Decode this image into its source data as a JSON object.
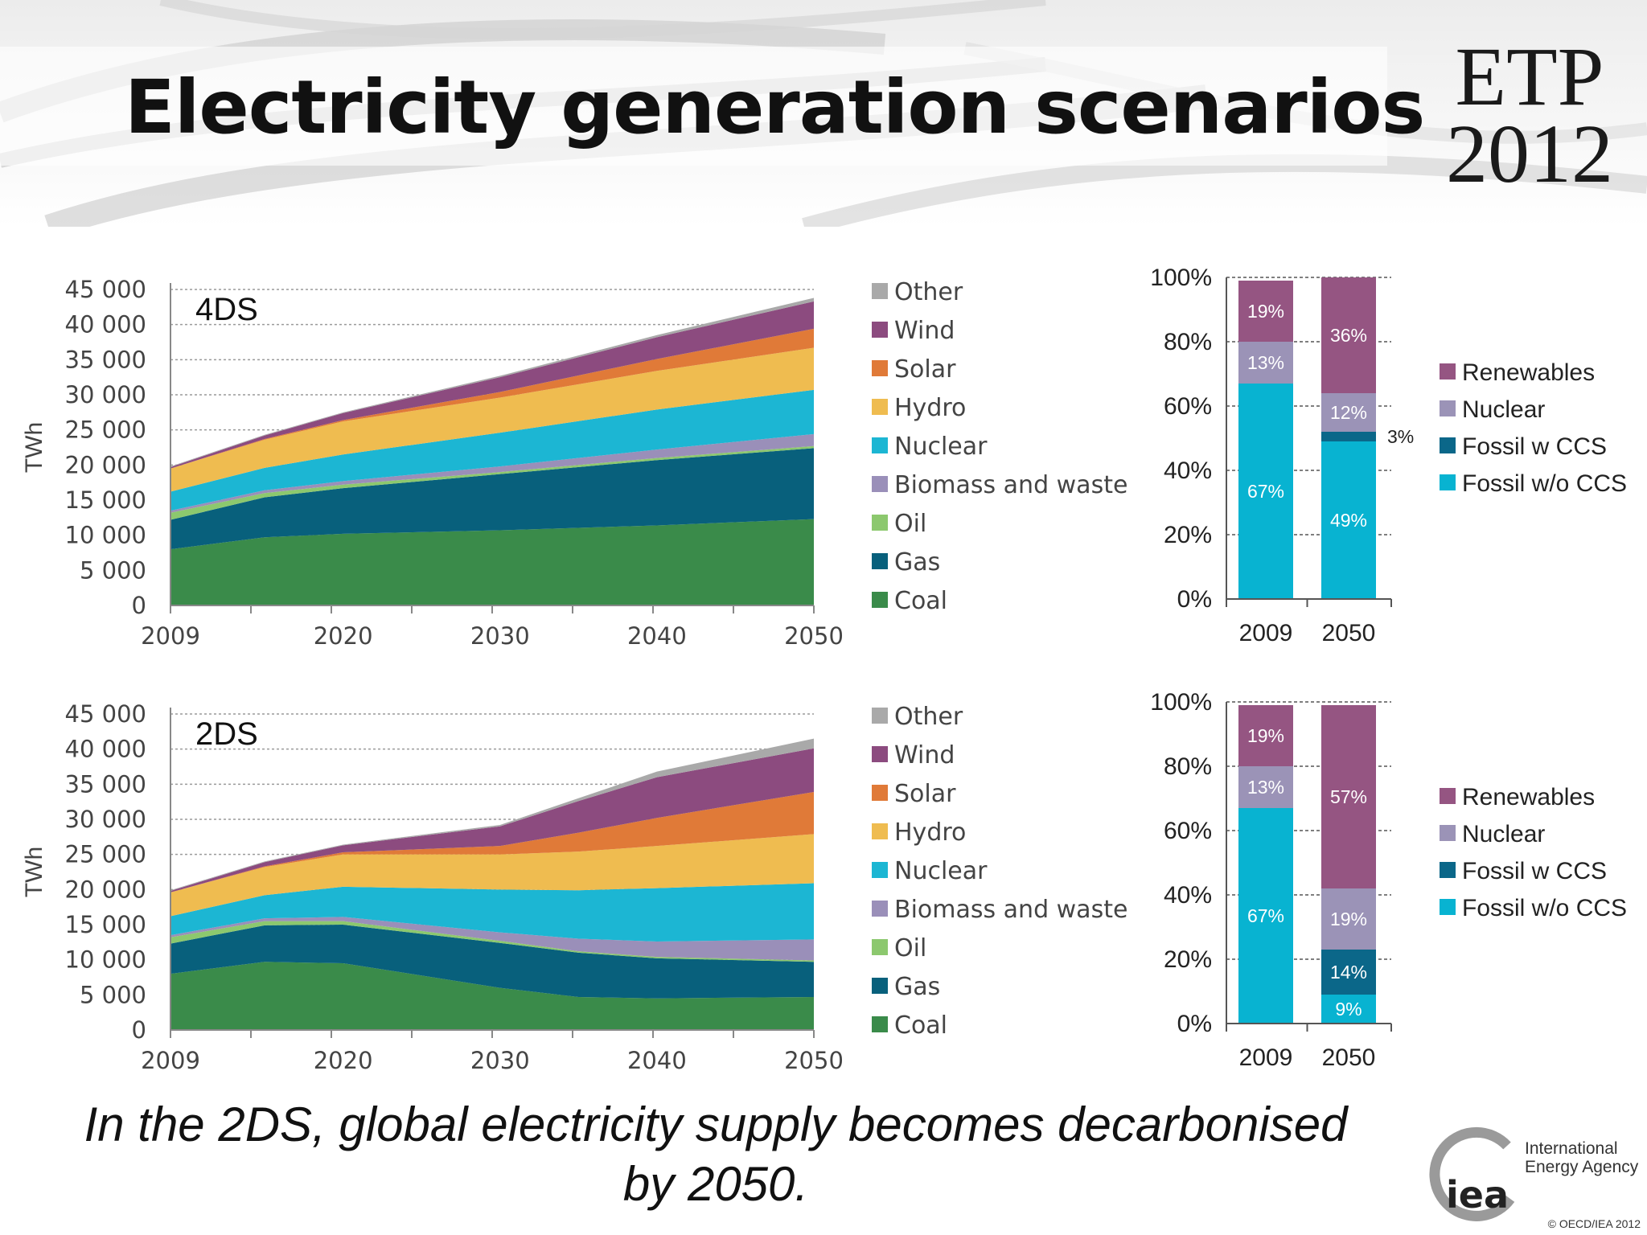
{
  "header": {
    "title": "Electricity generation scenarios",
    "badge_line1": "ETP",
    "badge_line2": "2012"
  },
  "caption": {
    "line1": "In the 2DS, global electricity supply becomes decarbonised",
    "line2": "by 2050."
  },
  "footer": {
    "org_line1": "International",
    "org_line2": "Energy Agency",
    "logo_text": "iea",
    "copyright": "© OECD/IEA 2012"
  },
  "colors": {
    "Coal": "#3a8b4a",
    "Gas": "#08607c",
    "Oil": "#8cc86e",
    "Biomass and waste": "#9a8fb9",
    "Nuclear": "#1cb6d3",
    "Hydro": "#efbc50",
    "Solar": "#e07a38",
    "Wind": "#8c4b7f",
    "Other": "#a9a9a9",
    "Renewables": "#955582",
    "Nuclear share": "#9b93b7",
    "Fossil w CCS": "#0b6789",
    "Fossil w/o CCS": "#08b3d1"
  },
  "chart_data": [
    {
      "id": "4ds-area",
      "type": "area",
      "stacked": true,
      "scenario_label": "4DS",
      "ylabel": "TWh",
      "xlabel": "",
      "x": [
        2009,
        2015,
        2020,
        2030,
        2040,
        2050
      ],
      "ylim": [
        0,
        45000
      ],
      "yticks": [
        0,
        5000,
        10000,
        15000,
        20000,
        25000,
        30000,
        35000,
        40000,
        45000
      ],
      "ytick_labels": [
        "0",
        "5 000",
        "10 000",
        "15 000",
        "20 000",
        "25 000",
        "30 000",
        "35 000",
        "40 000",
        "45 000"
      ],
      "xticks": [
        2009,
        2020,
        2030,
        2040,
        2050
      ],
      "grid": true,
      "legend": "right",
      "series": [
        {
          "name": "Coal",
          "values": [
            8000,
            9700,
            10200,
            10700,
            11400,
            12300
          ]
        },
        {
          "name": "Gas",
          "values": [
            4200,
            5700,
            6500,
            8000,
            9300,
            10100
          ]
        },
        {
          "name": "Oil",
          "values": [
            1000,
            600,
            500,
            300,
            300,
            300
          ]
        },
        {
          "name": "Biomass and waste",
          "values": [
            300,
            400,
            500,
            800,
            1200,
            1700
          ]
        },
        {
          "name": "Nuclear",
          "values": [
            2700,
            3200,
            3800,
            4800,
            5700,
            6300
          ]
        },
        {
          "name": "Hydro",
          "values": [
            3300,
            4000,
            4700,
            5000,
            5500,
            6000
          ]
        },
        {
          "name": "Solar",
          "values": [
            0,
            100,
            200,
            800,
            1700,
            2700
          ]
        },
        {
          "name": "Wind",
          "values": [
            200,
            500,
            1000,
            2100,
            3100,
            3900
          ]
        },
        {
          "name": "Other",
          "values": [
            100,
            100,
            100,
            200,
            300,
            500
          ]
        }
      ]
    },
    {
      "id": "4ds-share",
      "type": "bar",
      "stacked": true,
      "categories": [
        "2009",
        "2050"
      ],
      "ylim": [
        0,
        100
      ],
      "ytick_labels": [
        "0%",
        "20%",
        "40%",
        "60%",
        "80%",
        "100%"
      ],
      "legend": "right",
      "series": [
        {
          "name": "Fossil w/o CCS",
          "values": [
            67,
            49
          ],
          "labels": [
            "67%",
            "49%"
          ]
        },
        {
          "name": "Fossil w CCS",
          "values": [
            0,
            3
          ],
          "labels": [
            "",
            "3%"
          ]
        },
        {
          "name": "Nuclear",
          "values": [
            13,
            12
          ],
          "labels": [
            "13%",
            "12%"
          ]
        },
        {
          "name": "Renewables",
          "values": [
            19,
            36
          ],
          "labels": [
            "19%",
            "36%"
          ]
        }
      ]
    },
    {
      "id": "2ds-area",
      "type": "area",
      "stacked": true,
      "scenario_label": "2DS",
      "ylabel": "TWh",
      "xlabel": "",
      "x": [
        2009,
        2015,
        2020,
        2030,
        2035,
        2040,
        2050
      ],
      "ylim": [
        0,
        45000
      ],
      "yticks": [
        0,
        5000,
        10000,
        15000,
        20000,
        25000,
        30000,
        35000,
        40000,
        45000
      ],
      "ytick_labels": [
        "0",
        "5 000",
        "10 000",
        "15 000",
        "20 000",
        "25 000",
        "30 000",
        "35 000",
        "40 000",
        "45 000"
      ],
      "xticks": [
        2009,
        2020,
        2030,
        2040,
        2050
      ],
      "grid": true,
      "legend": "right",
      "series": [
        {
          "name": "Coal",
          "values": [
            8000,
            9700,
            9500,
            6000,
            4700,
            4500,
            4700
          ]
        },
        {
          "name": "Gas",
          "values": [
            4300,
            5200,
            5500,
            6400,
            6300,
            5700,
            5000
          ]
        },
        {
          "name": "Oil",
          "values": [
            900,
            600,
            500,
            300,
            200,
            200,
            200
          ]
        },
        {
          "name": "Biomass and waste",
          "values": [
            300,
            400,
            600,
            1200,
            1800,
            2200,
            3000
          ]
        },
        {
          "name": "Nuclear",
          "values": [
            2700,
            3300,
            4300,
            6100,
            6900,
            7600,
            8000
          ]
        },
        {
          "name": "Hydro",
          "values": [
            3400,
            4000,
            4600,
            5000,
            5500,
            6000,
            7000
          ]
        },
        {
          "name": "Solar",
          "values": [
            0,
            100,
            300,
            1200,
            2700,
            4000,
            6000
          ]
        },
        {
          "name": "Wind",
          "values": [
            200,
            600,
            1000,
            2800,
            4500,
            5800,
            6200
          ]
        },
        {
          "name": "Other",
          "values": [
            100,
            100,
            100,
            200,
            400,
            800,
            1400
          ]
        }
      ]
    },
    {
      "id": "2ds-share",
      "type": "bar",
      "stacked": true,
      "categories": [
        "2009",
        "2050"
      ],
      "ylim": [
        0,
        100
      ],
      "ytick_labels": [
        "0%",
        "20%",
        "40%",
        "60%",
        "80%",
        "100%"
      ],
      "legend": "right",
      "series": [
        {
          "name": "Fossil w/o CCS",
          "values": [
            67,
            9
          ],
          "labels": [
            "67%",
            "9%"
          ]
        },
        {
          "name": "Fossil w CCS",
          "values": [
            0,
            14
          ],
          "labels": [
            "",
            "14%"
          ]
        },
        {
          "name": "Nuclear",
          "values": [
            13,
            19
          ],
          "labels": [
            "13%",
            "19%"
          ]
        },
        {
          "name": "Renewables",
          "values": [
            19,
            57
          ],
          "labels": [
            "19%",
            "57%"
          ]
        }
      ]
    }
  ]
}
